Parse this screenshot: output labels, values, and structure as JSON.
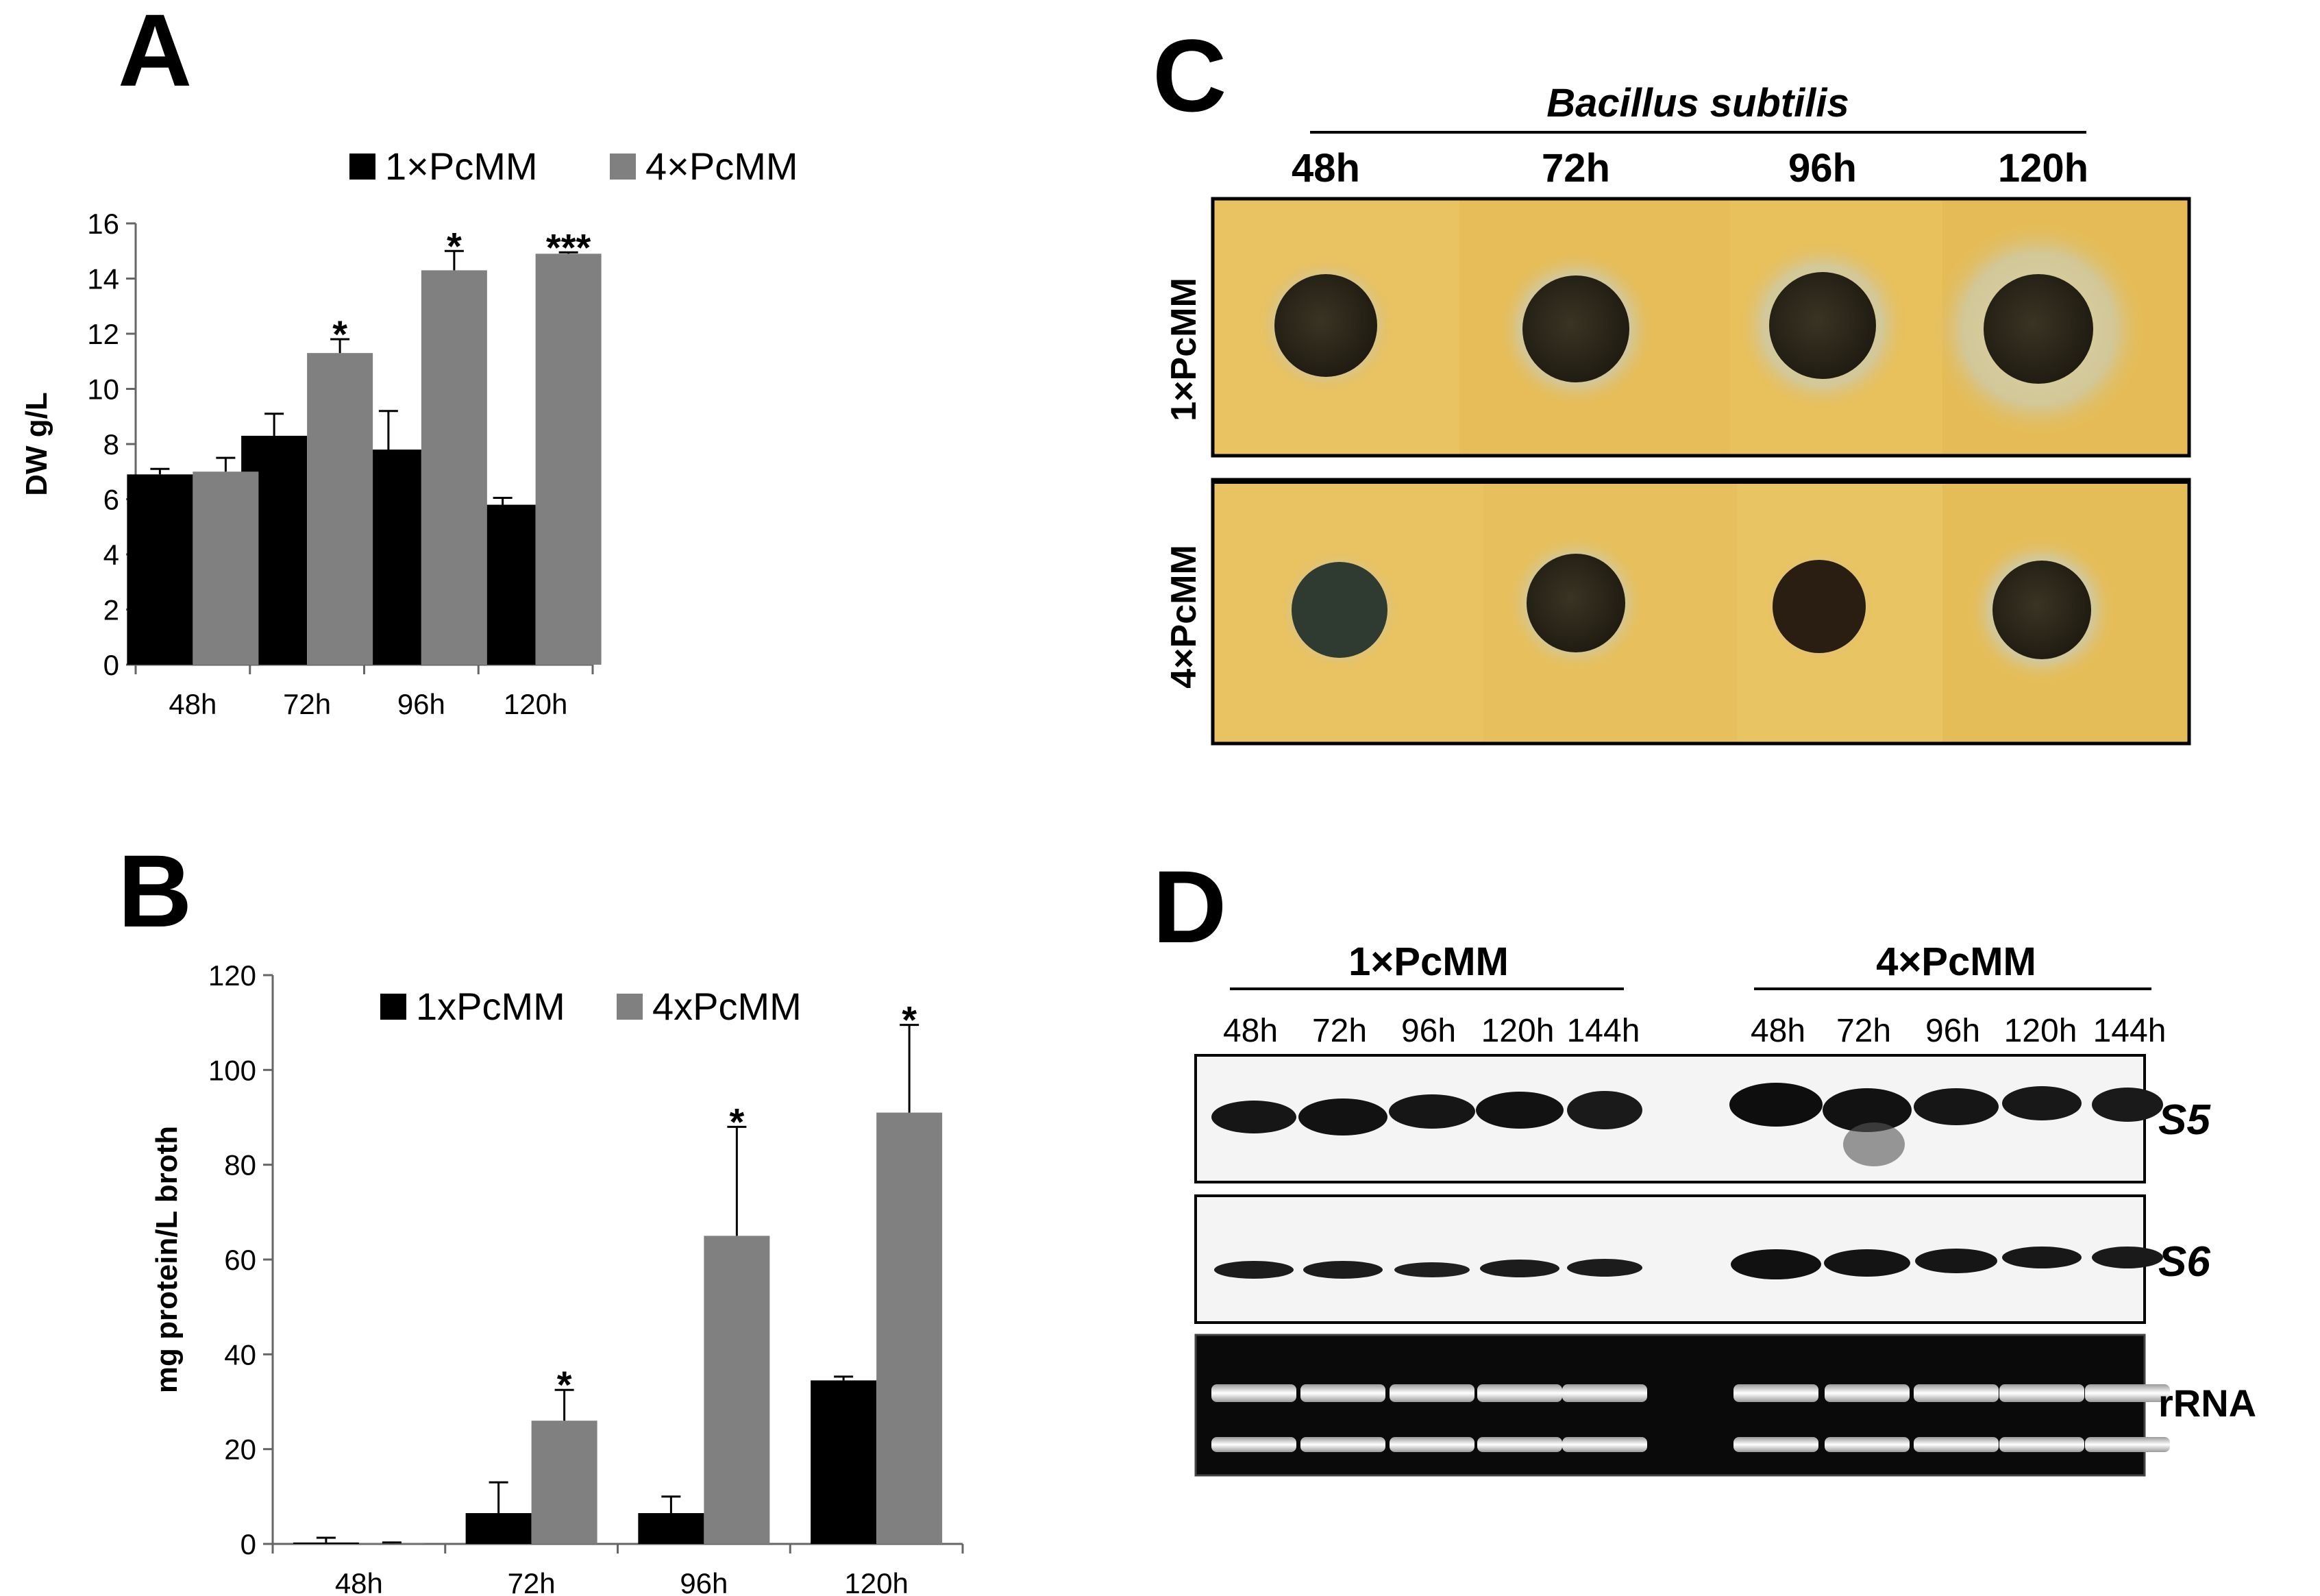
{
  "panels": {
    "a": {
      "letter": "A"
    },
    "b": {
      "letter": "B"
    },
    "c": {
      "letter": "C",
      "organism": "Bacillus  subtilis",
      "timepoints": [
        "48h",
        "72h",
        "96h",
        "120h"
      ],
      "rows": [
        "1×PcMM",
        "4×PcMM"
      ],
      "colors": {
        "agar": "#e8bf5a",
        "well": "#2a2518",
        "halo": "#c5c49a"
      }
    },
    "d": {
      "letter": "D",
      "group1": "1×PcMM",
      "group2": "4×PcMM",
      "lanes": [
        "48h",
        "72h",
        "96h",
        "120h",
        "144h"
      ],
      "blots": [
        "S5",
        "S6",
        "rRNA"
      ]
    }
  },
  "chart_data": [
    {
      "id": "A",
      "type": "bar",
      "categories": [
        "48h",
        "72h",
        "96h",
        "120h"
      ],
      "series": [
        {
          "name": "1×PcMM",
          "color": "#000000",
          "values": [
            6.9,
            8.3,
            7.8,
            5.8
          ],
          "errors": [
            0.2,
            0.8,
            1.4,
            0.25
          ]
        },
        {
          "name": "4×PcMM",
          "color": "#808080",
          "values": [
            7.0,
            11.3,
            14.3,
            14.9
          ],
          "errors": [
            0.5,
            0.5,
            0.7,
            0.05
          ]
        }
      ],
      "significance": [
        "",
        "*",
        "*",
        "***"
      ],
      "xlabel": "",
      "ylabel": "DW g/L",
      "ylim": [
        0,
        16
      ],
      "yticks": [
        0,
        2,
        4,
        6,
        8,
        10,
        12,
        14,
        16
      ],
      "legend": "top",
      "grid": false
    },
    {
      "id": "B",
      "type": "bar",
      "categories": [
        "48h",
        "72h",
        "96h",
        "120h"
      ],
      "series": [
        {
          "name": "1xPcMM",
          "color": "#000000",
          "values": [
            0.3,
            6.5,
            6.5,
            34.5
          ],
          "errors": [
            1.0,
            6.5,
            3.5,
            0.8
          ]
        },
        {
          "name": "4xPcMM",
          "color": "#808080",
          "values": [
            0.1,
            26.0,
            65.0,
            91.0
          ],
          "errors": [
            0.2,
            6.5,
            23.0,
            18.5
          ]
        }
      ],
      "significance": [
        "",
        "*",
        "*",
        "*"
      ],
      "xlabel": "",
      "ylabel": "mg protein/L broth",
      "ylim": [
        0,
        120
      ],
      "yticks": [
        0,
        20,
        40,
        60,
        80,
        100,
        120
      ],
      "legend": "top-right",
      "grid": false
    }
  ]
}
